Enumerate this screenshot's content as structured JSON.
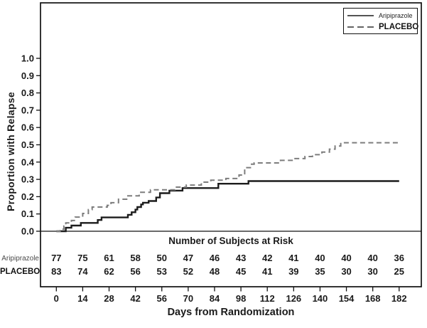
{
  "chart_data": {
    "type": "line",
    "subtype": "kaplan-meier-step",
    "title": "",
    "ylabel": "Proportion with Relapse",
    "xlabel": "Days from Randomization",
    "x_ticks": [
      0,
      14,
      28,
      42,
      56,
      70,
      84,
      98,
      112,
      126,
      140,
      154,
      168,
      182
    ],
    "y_ticks": [
      "0.0",
      "0.1",
      "0.2",
      "0.3",
      "0.4",
      "0.5",
      "0.6",
      "0.7",
      "0.8",
      "0.9",
      "1.0"
    ],
    "xlim": [
      0,
      194
    ],
    "ylim": [
      0,
      1.32
    ],
    "grid": false,
    "colors": {
      "aripiprazole_line": "#1c1c1c",
      "placebo_line": "#7d7d7d",
      "axis": "#111111"
    },
    "legend": {
      "position": "top-right",
      "entries": [
        {
          "label": "Aripiprazole",
          "style": "solid"
        },
        {
          "label": "PLACEBO",
          "style": "dashed"
        }
      ]
    },
    "series": [
      {
        "name": "Aripiprazole",
        "line": "solid",
        "color": "#1c1c1c",
        "points": [
          [
            0,
            0
          ],
          [
            5,
            0.02
          ],
          [
            8,
            0.033
          ],
          [
            13,
            0.048
          ],
          [
            22,
            0.065
          ],
          [
            24,
            0.08
          ],
          [
            38,
            0.095
          ],
          [
            40,
            0.11
          ],
          [
            42,
            0.125
          ],
          [
            43,
            0.14
          ],
          [
            45,
            0.155
          ],
          [
            46,
            0.165
          ],
          [
            49,
            0.175
          ],
          [
            53,
            0.195
          ],
          [
            55,
            0.22
          ],
          [
            60,
            0.235
          ],
          [
            67,
            0.25
          ],
          [
            86,
            0.275
          ],
          [
            102,
            0.29
          ],
          [
            182,
            0.29
          ]
        ]
      },
      {
        "name": "PLACEBO",
        "line": "dashed",
        "color": "#7d7d7d",
        "points": [
          [
            0,
            0
          ],
          [
            2,
            0.012
          ],
          [
            4,
            0.03
          ],
          [
            5,
            0.048
          ],
          [
            8,
            0.062
          ],
          [
            10,
            0.082
          ],
          [
            14,
            0.103
          ],
          [
            17,
            0.125
          ],
          [
            19,
            0.14
          ],
          [
            27,
            0.15
          ],
          [
            29,
            0.165
          ],
          [
            33,
            0.185
          ],
          [
            38,
            0.205
          ],
          [
            44,
            0.225
          ],
          [
            50,
            0.24
          ],
          [
            63,
            0.255
          ],
          [
            69,
            0.267
          ],
          [
            77,
            0.284
          ],
          [
            82,
            0.295
          ],
          [
            90,
            0.305
          ],
          [
            97,
            0.325
          ],
          [
            100,
            0.368
          ],
          [
            103,
            0.388
          ],
          [
            105,
            0.395
          ],
          [
            119,
            0.41
          ],
          [
            126,
            0.42
          ],
          [
            132,
            0.432
          ],
          [
            136,
            0.443
          ],
          [
            141,
            0.458
          ],
          [
            145,
            0.475
          ],
          [
            148,
            0.493
          ],
          [
            151,
            0.512
          ],
          [
            182,
            0.512
          ]
        ]
      }
    ],
    "risk_table": {
      "title": "Number of Subjects at Risk",
      "rows": [
        {
          "label": "Aripiprazole",
          "counts": [
            77,
            75,
            61,
            58,
            50,
            47,
            46,
            43,
            42,
            41,
            40,
            40,
            40,
            36
          ]
        },
        {
          "label": "PLACEBO",
          "counts": [
            83,
            74,
            62,
            56,
            53,
            52,
            48,
            45,
            41,
            39,
            35,
            30,
            30,
            25
          ]
        }
      ]
    }
  }
}
